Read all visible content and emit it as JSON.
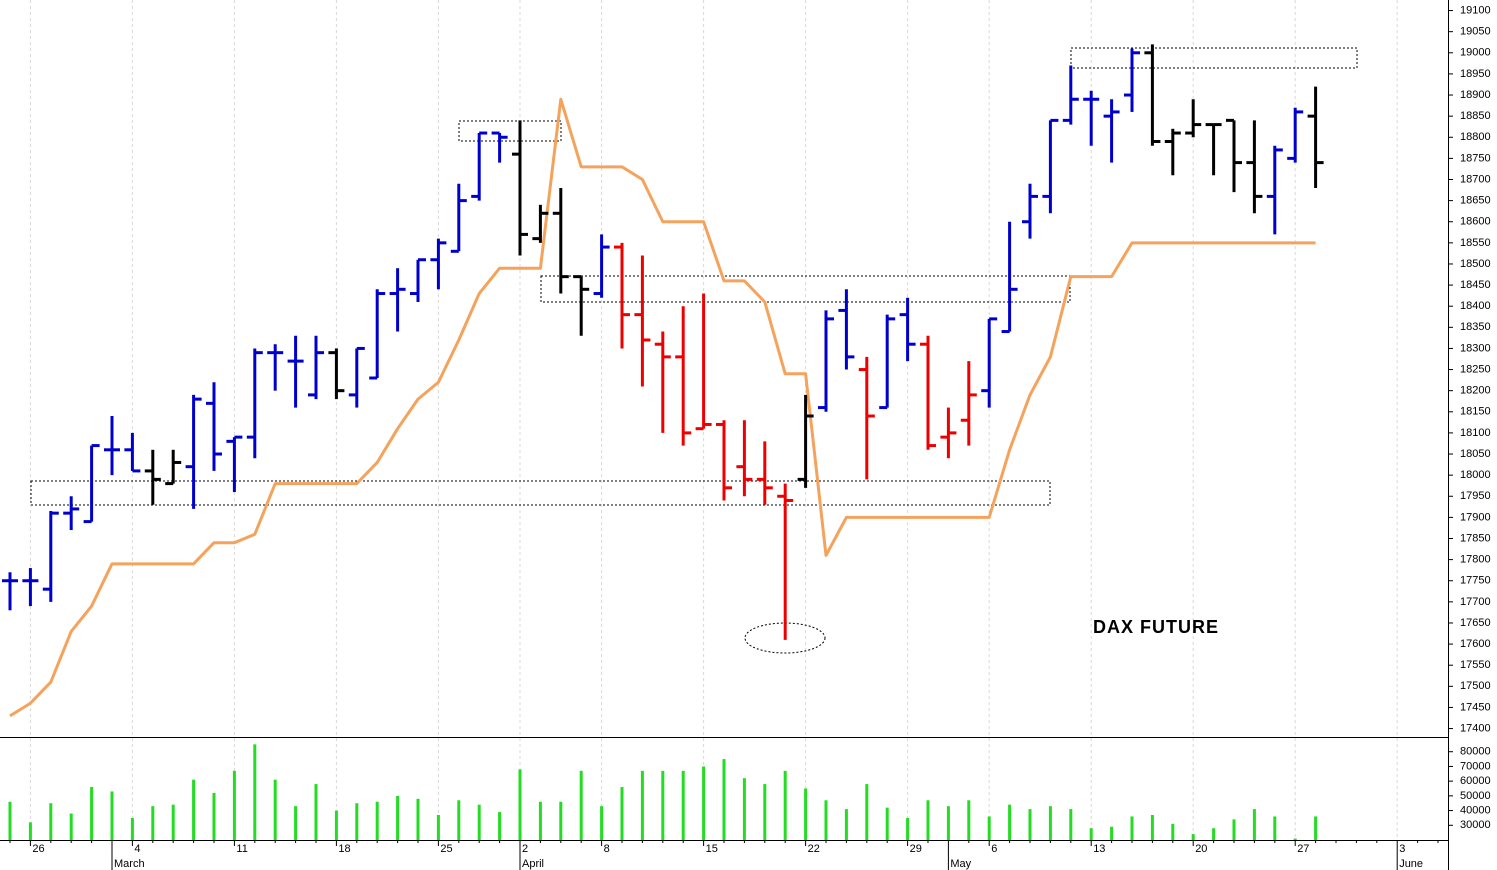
{
  "chart_data": [
    {
      "type": "ohlc",
      "title": "DAX FUTURE",
      "categories": [
        null,
        "26",
        null,
        null,
        null,
        null,
        "4",
        null,
        null,
        null,
        null,
        "11",
        null,
        null,
        null,
        null,
        "18",
        null,
        null,
        null,
        null,
        "25",
        null,
        null,
        null,
        "2",
        null,
        null,
        null,
        "8",
        null,
        null,
        null,
        null,
        "15",
        null,
        null,
        null,
        null,
        "22",
        null,
        null,
        null,
        null,
        "29",
        null,
        null,
        null,
        "6",
        null,
        null,
        null,
        null,
        "13",
        null,
        null,
        null,
        null,
        "20",
        null,
        null,
        null,
        null,
        "27",
        null,
        null,
        null,
        null,
        "3",
        null,
        null
      ],
      "months": [
        null,
        null,
        null,
        null,
        null,
        "March",
        null,
        null,
        null,
        null,
        null,
        null,
        null,
        null,
        null,
        null,
        null,
        null,
        null,
        null,
        null,
        null,
        null,
        null,
        null,
        "April",
        null,
        null,
        null,
        null,
        null,
        null,
        null,
        null,
        null,
        null,
        null,
        null,
        null,
        null,
        null,
        null,
        null,
        null,
        null,
        null,
        "May",
        null,
        null,
        null,
        null,
        null,
        null,
        null,
        null,
        null,
        null,
        null,
        null,
        null,
        null,
        null,
        null,
        null,
        null,
        null,
        null,
        null,
        "June",
        null,
        null
      ],
      "open": [
        17750,
        17750,
        17730,
        17910,
        17890,
        18060,
        18060,
        18010,
        17980,
        18020,
        18170,
        18080,
        18090,
        18290,
        18270,
        18190,
        18290,
        18190,
        18230,
        18430,
        18430,
        18510,
        18530,
        18660,
        18810,
        18760,
        18560,
        18620,
        18470,
        18430,
        18540,
        18380,
        18310,
        18280,
        18110,
        18120,
        18020,
        17990,
        17950,
        17990,
        18160,
        18390,
        18250,
        18160,
        18380,
        18310,
        18090,
        18130,
        18200,
        18340,
        18600,
        18660,
        18840,
        18890,
        18850,
        18900,
        19000,
        18790,
        18810,
        18830,
        18840,
        18740,
        18660,
        18750,
        18850,
        null,
        null,
        null,
        null,
        null,
        null
      ],
      "high": [
        17770,
        17780,
        17915,
        17950,
        18070,
        18140,
        18100,
        18060,
        18060,
        18190,
        18220,
        18090,
        18300,
        18310,
        18330,
        18330,
        18300,
        18300,
        18440,
        18490,
        18510,
        18560,
        18690,
        18810,
        18810,
        18840,
        18640,
        18680,
        18470,
        18570,
        18550,
        18520,
        18340,
        18400,
        18430,
        18130,
        18130,
        18080,
        17980,
        18190,
        18390,
        18440,
        18280,
        18380,
        18420,
        18330,
        18160,
        18270,
        18370,
        18600,
        18690,
        18840,
        18970,
        18910,
        18890,
        19010,
        19020,
        18820,
        18890,
        18830,
        18840,
        18840,
        18780,
        18870,
        18920,
        null,
        null,
        null,
        null,
        null,
        null
      ],
      "low": [
        17680,
        17690,
        17700,
        17870,
        17890,
        18000,
        18010,
        17930,
        17980,
        17920,
        18010,
        17960,
        18040,
        18200,
        18160,
        18180,
        18180,
        18160,
        18230,
        18340,
        18410,
        18440,
        18530,
        18650,
        18740,
        18520,
        18550,
        18430,
        18330,
        18420,
        18300,
        18210,
        18100,
        18070,
        18110,
        17940,
        17950,
        17930,
        17610,
        17970,
        18150,
        18250,
        17990,
        18160,
        18270,
        18060,
        18040,
        18070,
        18160,
        18340,
        18560,
        18620,
        18830,
        18780,
        18740,
        18860,
        18780,
        18710,
        18800,
        18710,
        18670,
        18620,
        18570,
        18740,
        18680,
        null,
        null,
        null,
        null,
        null,
        null
      ],
      "close": [
        17750,
        17750,
        17910,
        17920,
        18070,
        18060,
        18010,
        17990,
        18030,
        18180,
        18050,
        18090,
        18290,
        18290,
        18270,
        18290,
        18200,
        18300,
        18430,
        18440,
        18510,
        18550,
        18650,
        18810,
        18800,
        18570,
        18620,
        18470,
        18440,
        18540,
        18380,
        18320,
        18280,
        18100,
        18120,
        17970,
        17990,
        17970,
        17940,
        18140,
        18370,
        18280,
        18140,
        18370,
        18310,
        18070,
        18100,
        18190,
        18370,
        18440,
        18660,
        18840,
        18890,
        18890,
        18860,
        19000,
        18790,
        18810,
        18830,
        18830,
        18740,
        18660,
        18770,
        18860,
        18740,
        null,
        null,
        null,
        null,
        null,
        null
      ],
      "bar_colors": [
        "#0000cc",
        "#0000cc",
        "#0000cc",
        "#0000cc",
        "#0000cc",
        "#0000cc",
        "#0000cc",
        "#000000",
        "#000000",
        "#0000cc",
        "#0000cc",
        "#0000cc",
        "#0000cc",
        "#0000cc",
        "#0000cc",
        "#0000cc",
        "#000000",
        "#0000cc",
        "#0000cc",
        "#0000cc",
        "#0000cc",
        "#0000cc",
        "#0000cc",
        "#0000cc",
        "#0000cc",
        "#000000",
        "#000000",
        "#000000",
        "#000000",
        "#0000cc",
        "#ee0000",
        "#ee0000",
        "#ee0000",
        "#ee0000",
        "#ee0000",
        "#ee0000",
        "#ee0000",
        "#ee0000",
        "#ee0000",
        "#000000",
        "#0000cc",
        "#0000cc",
        "#ee0000",
        "#0000cc",
        "#0000cc",
        "#ee0000",
        "#ee0000",
        "#ee0000",
        "#0000cc",
        "#0000cc",
        "#0000cc",
        "#0000cc",
        "#0000cc",
        "#0000cc",
        "#0000cc",
        "#0000cc",
        "#000000",
        "#000000",
        "#000000",
        "#000000",
        "#000000",
        "#000000",
        "#0000cc",
        "#0000cc",
        "#000000",
        null,
        null,
        null,
        null,
        null,
        null
      ],
      "line_color": "#f5a35c",
      "line_values": [
        17430,
        17460,
        17510,
        17630,
        17690,
        17790,
        17790,
        17790,
        17790,
        17790,
        17840,
        17840,
        17860,
        17980,
        17980,
        17980,
        17980,
        17980,
        18030,
        18110,
        18180,
        18220,
        18320,
        18430,
        18490,
        18490,
        18490,
        18890,
        18730,
        18730,
        18730,
        18700,
        18600,
        18600,
        18600,
        18460,
        18460,
        18410,
        18240,
        18240,
        17810,
        17900,
        17900,
        17900,
        17900,
        17900,
        17900,
        17900,
        17900,
        18060,
        18190,
        18280,
        18470,
        18470,
        18470,
        18550,
        18550,
        18550,
        18550,
        18550,
        18550,
        18550,
        18550,
        18550,
        18550,
        null,
        null,
        null,
        null,
        null,
        null
      ],
      "ylim": [
        17380,
        19125
      ],
      "yticks": [
        17400,
        17450,
        17500,
        17550,
        17600,
        17650,
        17700,
        17750,
        17800,
        17850,
        17900,
        17950,
        18000,
        18050,
        18100,
        18150,
        18200,
        18250,
        18300,
        18350,
        18400,
        18450,
        18500,
        18550,
        18600,
        18650,
        18700,
        18750,
        18800,
        18850,
        18900,
        18950,
        19000,
        19050,
        19100
      ]
    },
    {
      "type": "bar",
      "color": "#22dd22",
      "values": [
        46000,
        32000,
        45000,
        38000,
        56000,
        53000,
        35000,
        43000,
        44000,
        61000,
        52000,
        67000,
        85000,
        61000,
        43000,
        58000,
        40000,
        45000,
        46000,
        50000,
        48000,
        37000,
        47000,
        44000,
        39000,
        68000,
        46000,
        46000,
        67000,
        43000,
        56000,
        67000,
        67000,
        67000,
        70000,
        75000,
        62000,
        58000,
        67000,
        55000,
        47000,
        41000,
        58000,
        42000,
        35000,
        47000,
        43000,
        47000,
        36000,
        44000,
        41000,
        43000,
        41000,
        28000,
        29000,
        36000,
        37000,
        31000,
        24000,
        28000,
        34000,
        41000,
        36000,
        21000,
        36000,
        null,
        null,
        null,
        null,
        null,
        null
      ],
      "ylim": [
        20000,
        90000
      ],
      "yticks": [
        30000,
        40000,
        50000,
        60000,
        70000,
        80000
      ]
    }
  ]
}
